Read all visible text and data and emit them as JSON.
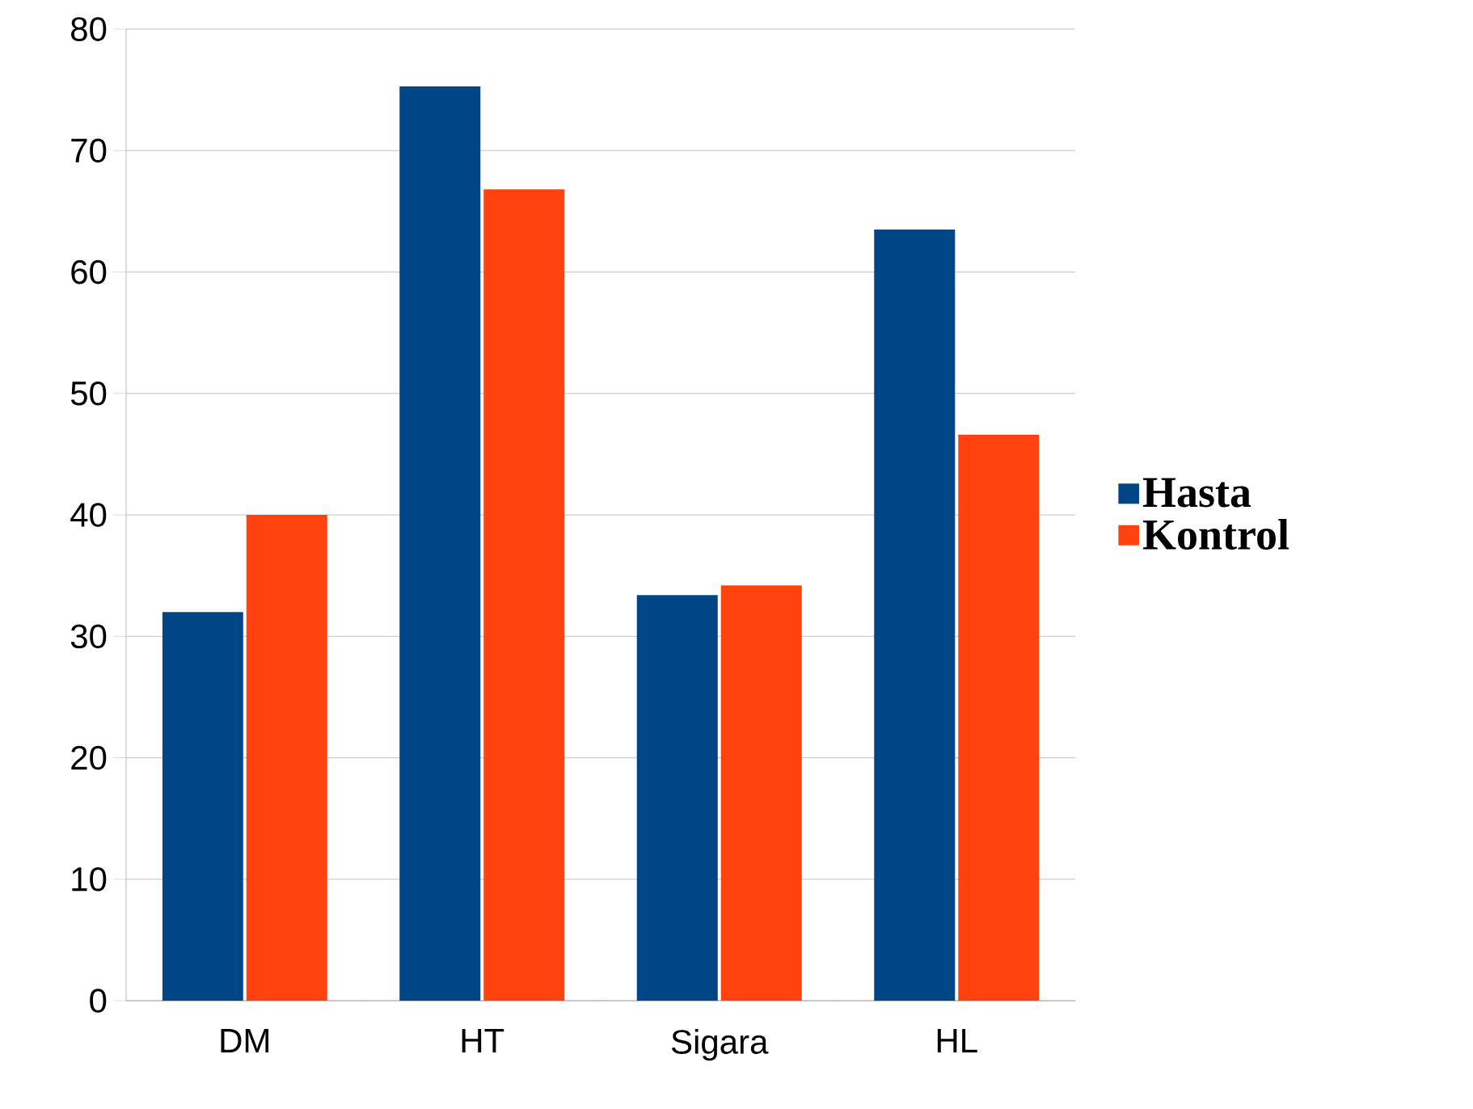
{
  "chart_data": {
    "type": "bar",
    "categories": [
      "DM",
      "HT",
      "Sigara",
      "HL"
    ],
    "series": [
      {
        "name": "Hasta",
        "color": "#004586",
        "values": [
          32,
          75.3,
          33.4,
          63.5
        ]
      },
      {
        "name": "Kontrol",
        "color": "#ff420e",
        "values": [
          40,
          66.8,
          34.2,
          46.6
        ]
      }
    ],
    "ylim": [
      0,
      80
    ],
    "yticks": [
      0,
      10,
      20,
      30,
      40,
      50,
      60,
      70,
      80
    ],
    "grid": "y",
    "legend": "right"
  }
}
